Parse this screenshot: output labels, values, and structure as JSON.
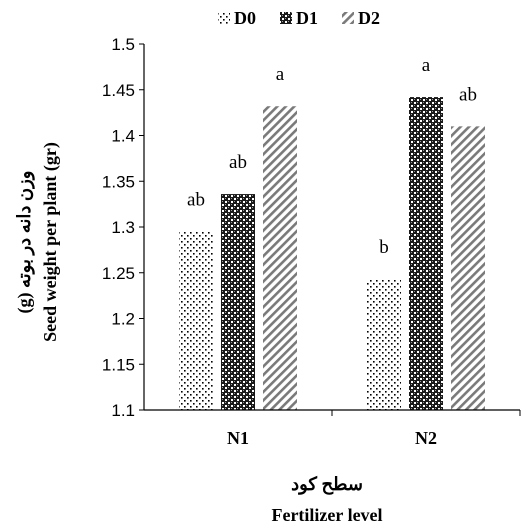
{
  "chart_data": {
    "type": "bar",
    "categories": [
      "N1",
      "N2"
    ],
    "series": [
      {
        "name": "D0",
        "values": [
          1.295,
          1.243
        ],
        "letters": [
          "ab",
          "b"
        ],
        "pattern": "dots"
      },
      {
        "name": "D1",
        "values": [
          1.336,
          1.442
        ],
        "letters": [
          "ab",
          "a"
        ],
        "pattern": "checker"
      },
      {
        "name": "D2",
        "values": [
          1.432,
          1.41
        ],
        "letters": [
          "a",
          "ab"
        ],
        "pattern": "diagonal"
      }
    ],
    "ylim": [
      1.1,
      1.5
    ],
    "yticks": [
      "1.1",
      "1.15",
      "1.2",
      "1.25",
      "1.3",
      "1.35",
      "1.4",
      "1.45",
      "1.5"
    ],
    "ylabel_fa": "وزن دانه در بوته (g)",
    "ylabel_en": "Seed  weight per plant (gr)",
    "xlabel_fa": "سطح کود",
    "xlabel_en": "Fertilizer level",
    "legend_position": "top",
    "grid": false
  }
}
